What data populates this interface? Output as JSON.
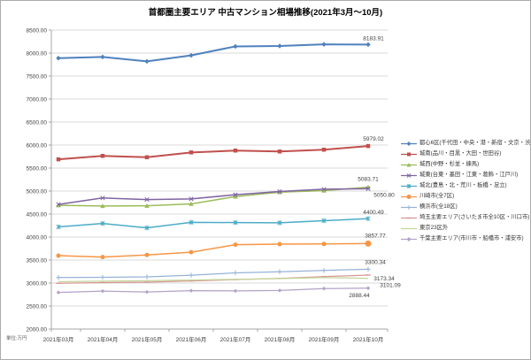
{
  "chart_data": {
    "type": "line",
    "title": "首都圏主要エリア 中古マンション相場推移(2021年3月～10月)",
    "unit_note": "単位:万円",
    "categories": [
      "2021年03月",
      "2021年04月",
      "2021年05月",
      "2021年06月",
      "2021年07月",
      "2021年08月",
      "2021年09月",
      "2021年10月"
    ],
    "y_axis": {
      "min": 2000,
      "max": 8500,
      "step": 500,
      "tick_format": "0.00"
    },
    "grid": true,
    "legend_position": "right",
    "series": [
      {
        "name": "都心6区(千代田・中央・港・新宿・文京・渋谷)",
        "color": "#4F81BD",
        "marker": "diamond",
        "values": [
          7890,
          7915,
          7820,
          7950,
          8145,
          8155,
          8190,
          8183.91
        ],
        "end_label": "8183.91"
      },
      {
        "name": "城南(品川・目黒・大田・世田谷)",
        "color": "#C0504D",
        "marker": "square",
        "values": [
          5690,
          5765,
          5735,
          5840,
          5880,
          5860,
          5900,
          5979.02
        ],
        "end_label": "5979.02"
      },
      {
        "name": "城西(中野・杉並・練馬)",
        "color": "#9BBB59",
        "marker": "triangle",
        "values": [
          4690,
          4675,
          4680,
          4720,
          4880,
          4975,
          5010,
          5083.71
        ],
        "end_label": "5083.71"
      },
      {
        "name": "城東(台東・墨田・江東・葛飾・江戸川)",
        "color": "#8064A2",
        "marker": "x",
        "values": [
          4710,
          4850,
          4815,
          4830,
          4920,
          4990,
          5040,
          5050.8
        ],
        "end_label": "5050.80"
      },
      {
        "name": "城北(豊島・北・荒川・板橋・足立)",
        "color": "#4BACC6",
        "marker": "asterisk",
        "values": [
          4220,
          4295,
          4200,
          4320,
          4315,
          4310,
          4355,
          4400.49
        ],
        "end_label": "4400.49"
      },
      {
        "name": "川崎市(全7区)",
        "color": "#F79646",
        "marker": "circle",
        "values": [
          3595,
          3565,
          3610,
          3670,
          3835,
          3845,
          3850,
          3857.77
        ],
        "end_label": "3857.77"
      },
      {
        "name": "横浜市(全18区)",
        "color": "#95B3D7",
        "marker": "plus",
        "values": [
          3120,
          3125,
          3135,
          3170,
          3220,
          3245,
          3275,
          3300.34
        ],
        "end_label": "3300.34"
      },
      {
        "name": "埼玉主要エリア(さいたま市全10区・川口市)",
        "color": "#D99694",
        "marker": "dash",
        "values": [
          2995,
          3010,
          3020,
          3045,
          3075,
          3100,
          3140,
          3173.34
        ],
        "end_label": "3173.34"
      },
      {
        "name": "東京23区外",
        "color": "#C3D69B",
        "marker": "none",
        "values": [
          3030,
          3040,
          3050,
          3065,
          3080,
          3095,
          3120,
          3101.09
        ],
        "end_label": "3101.09"
      },
      {
        "name": "千葉主要エリア(市川市・船橋市・浦安市)",
        "color": "#B3A2C7",
        "marker": "diamond",
        "values": [
          2795,
          2825,
          2805,
          2835,
          2830,
          2840,
          2880,
          2888.44
        ],
        "end_label": "2888.44"
      }
    ]
  }
}
